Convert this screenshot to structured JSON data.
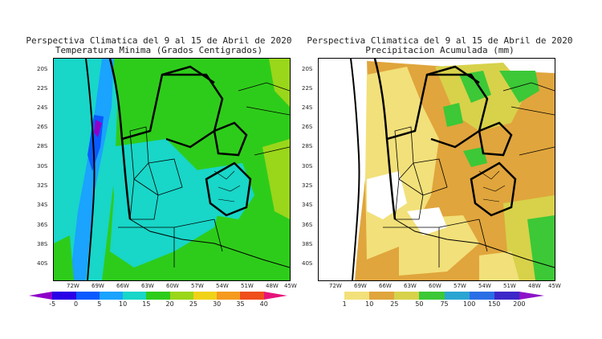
{
  "left": {
    "title_line1": "Perspectiva Climatica del 9 al 15 de Abril de 2020",
    "title_line2": "Temperatura Minima (Grados Centigrados)",
    "colorbar": {
      "labels": [
        "-5",
        "0",
        "5",
        "10",
        "15",
        "20",
        "25",
        "30",
        "35",
        "40"
      ],
      "colors": [
        "#8e00c8",
        "#2a00e6",
        "#0a5aff",
        "#1aa3ff",
        "#18d6c8",
        "#2ecc1a",
        "#9ad61a",
        "#f0d219",
        "#f59a1e",
        "#ef4f1b",
        "#e6147a"
      ]
    }
  },
  "right": {
    "title_line1": "Perspectiva Climatica del 9 al 15 de Abril de 2020",
    "title_line2": "Precipitacion Acumulada (mm)",
    "colorbar": {
      "labels": [
        "1",
        "10",
        "25",
        "50",
        "75",
        "100",
        "150",
        "200"
      ],
      "colors": [
        "#ffffff",
        "#f2e07a",
        "#e0a53c",
        "#d7d24a",
        "#3cc837",
        "#2aa5d2",
        "#2a6ee6",
        "#3c28c8",
        "#8c14c8"
      ]
    }
  },
  "axes": {
    "lat_labels": [
      "20S",
      "22S",
      "24S",
      "26S",
      "28S",
      "30S",
      "32S",
      "34S",
      "36S",
      "38S",
      "40S"
    ],
    "lon_labels": [
      "72W",
      "69W",
      "66W",
      "63W",
      "60W",
      "57W",
      "54W",
      "51W",
      "48W",
      "45W"
    ]
  }
}
